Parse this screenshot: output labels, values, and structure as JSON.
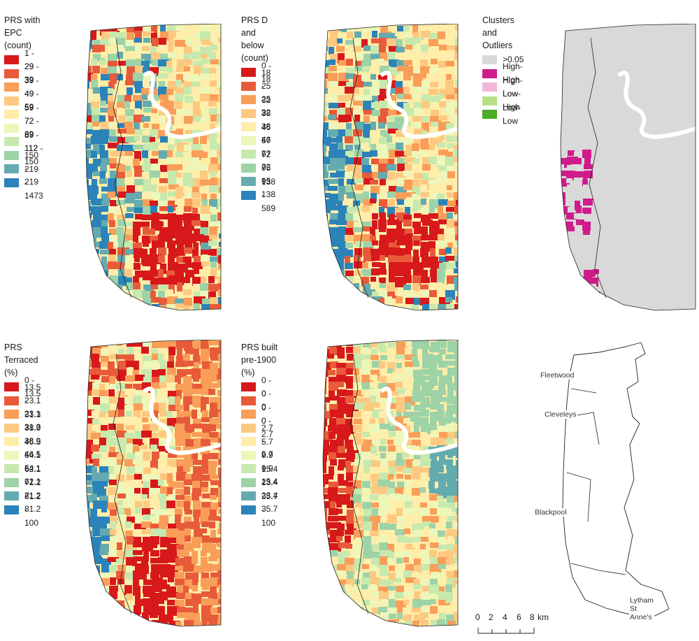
{
  "panels": [
    {
      "id": "epc",
      "legend_title": "PRS with EPC\n(count)",
      "legend_items": [
        {
          "label": "1 - 29",
          "color": "#d7191c"
        },
        {
          "label": "29 - 39",
          "color": "#e85b3a"
        },
        {
          "label": "39 - 49",
          "color": "#f99e59"
        },
        {
          "label": "49 - 59",
          "color": "#fdc980"
        },
        {
          "label": "59 - 72",
          "color": "#ffedaa"
        },
        {
          "label": "72 - 89",
          "color": "#ecf7b9"
        },
        {
          "label": "89 - 112",
          "color": "#c7e9ad"
        },
        {
          "label": "112 - 150",
          "color": "#9dd3a7"
        },
        {
          "label": "150 - 219",
          "color": "#64abb0"
        },
        {
          "label": "219 - 1473",
          "color": "#2b83ba"
        }
      ]
    },
    {
      "id": "d-below",
      "legend_title": "PRS D and below\n(count)",
      "legend_items": [
        {
          "label": "0 - 18",
          "color": "#d7191c"
        },
        {
          "label": "18 - 25",
          "color": "#e85b3a"
        },
        {
          "label": "25 - 32",
          "color": "#f99e59"
        },
        {
          "label": "32 - 38",
          "color": "#fdc980"
        },
        {
          "label": "38 - 46",
          "color": "#ffedaa"
        },
        {
          "label": "46 - 57",
          "color": "#ecf7b9"
        },
        {
          "label": "57 - 72",
          "color": "#c7e9ad"
        },
        {
          "label": "72 - 95",
          "color": "#9dd3a7"
        },
        {
          "label": "95 - 138",
          "color": "#64abb0"
        },
        {
          "label": "138 - 589",
          "color": "#2b83ba"
        }
      ]
    },
    {
      "id": "clusters",
      "legend_title": "Clusters and Outliers",
      "legend_items": [
        {
          "label": ">0.05",
          "color": "#d9d9d9"
        },
        {
          "label": "High-High",
          "color": "#d01c8b"
        },
        {
          "label": "High-Low",
          "color": "#f1b6da"
        },
        {
          "label": "Low-High",
          "color": "#b8e186"
        },
        {
          "label": "Low-Low",
          "color": "#4dac26"
        }
      ]
    },
    {
      "id": "terraced",
      "legend_title": "PRS Terraced\n(%)",
      "legend_items": [
        {
          "label": "0 - 13.5",
          "color": "#d7191c"
        },
        {
          "label": "13.5 - 23.1",
          "color": "#e85b3a"
        },
        {
          "label": "23.1 - 31.3",
          "color": "#f99e59"
        },
        {
          "label": "31.3 - 38.9",
          "color": "#fdc980"
        },
        {
          "label": "38.9 - 46.5",
          "color": "#ffedaa"
        },
        {
          "label": "46.5 - 54.1",
          "color": "#ecf7b9"
        },
        {
          "label": "54.1 - 62.1",
          "color": "#c7e9ad"
        },
        {
          "label": "62.1 - 71.2",
          "color": "#9dd3a7"
        },
        {
          "label": "71.2 - 81.2",
          "color": "#64abb0"
        },
        {
          "label": "81.2 - 100",
          "color": "#2b83ba"
        }
      ]
    },
    {
      "id": "pre1900",
      "legend_title": "PRS built pre-1900\n(%)",
      "legend_items": [
        {
          "label": "0 - 0",
          "color": "#d7191c"
        },
        {
          "label": "0 - 0",
          "color": "#e85b3a"
        },
        {
          "label": "0 - 0",
          "color": "#f99e59"
        },
        {
          "label": "0 - 2.7",
          "color": "#fdc980"
        },
        {
          "label": "2.7 - 5.7",
          "color": "#ffedaa"
        },
        {
          "label": "5.7 - 9.9",
          "color": "#ecf7b9"
        },
        {
          "label": "9.9 - 15.4",
          "color": "#c7e9ad"
        },
        {
          "label": "15.4 - 23.4",
          "color": "#9dd3a7"
        },
        {
          "label": "23.4 - 35.7",
          "color": "#64abb0"
        },
        {
          "label": "35.7 - 100",
          "color": "#2b83ba"
        }
      ]
    }
  ],
  "reference_map": {
    "places": [
      "Fleetwood",
      "Cleveleys",
      "Blackpool",
      "Lytham St Anne's"
    ]
  },
  "scalebar": {
    "ticks": [
      "0",
      "2",
      "4",
      "6",
      "8"
    ],
    "unit": "km"
  }
}
